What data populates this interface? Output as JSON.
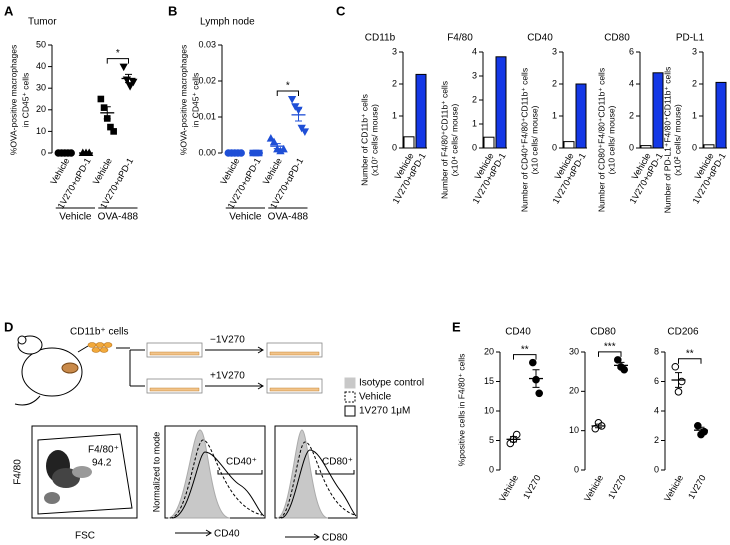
{
  "panel_labels": [
    "A",
    "B",
    "C",
    "D",
    "E"
  ],
  "chart_data": [
    {
      "type": "dot",
      "title": "Tumor",
      "y_label": [
        "%OVA-positive macrophages",
        "in CD45⁺ cells"
      ],
      "categories": [
        "Vehicle",
        "1V270+αPD-1",
        "Vehicle",
        "1V270+αPD-1"
      ],
      "group_labels": [
        {
          "text": "Vehicle",
          "categories": [
            0,
            1
          ]
        },
        {
          "text": "OVA-488",
          "categories": [
            2,
            3
          ]
        }
      ],
      "markers": [
        "circle",
        "triangle",
        "square",
        "triangle-down"
      ],
      "colors": [
        "#000000",
        "#000000",
        "#000000",
        "#000000"
      ],
      "points": [
        [
          0,
          0,
          0,
          0,
          0
        ],
        [
          0,
          0,
          0
        ],
        [
          25,
          21,
          16,
          12,
          10
        ],
        [
          40,
          34,
          31,
          33
        ]
      ],
      "means": [
        0,
        0,
        18.6,
        34.5
      ],
      "sems": [
        0,
        0,
        2.8,
        1.9
      ],
      "ylim": [
        0,
        50
      ],
      "yticks": [
        0,
        10,
        20,
        30,
        40,
        50
      ],
      "significance": [
        {
          "groups": [
            2,
            3
          ],
          "label": "*"
        }
      ]
    },
    {
      "type": "dot",
      "title": "Lymph node",
      "y_label": [
        "%OVA-positive macrophages",
        "in CD45⁺ cells"
      ],
      "categories": [
        "Vehicle",
        "1V270+αPD-1",
        "Vehicle",
        "1V270+αPD-1"
      ],
      "group_labels": [
        {
          "text": "Vehicle",
          "categories": [
            0,
            1
          ]
        },
        {
          "text": "OVA-488",
          "categories": [
            2,
            3
          ]
        }
      ],
      "markers": [
        "circle",
        "square",
        "triangle",
        "triangle-down"
      ],
      "colors": [
        "#1f4fd6",
        "#1f4fd6",
        "#1f4fd6",
        "#1f4fd6"
      ],
      "points": [
        [
          0,
          0,
          0,
          0,
          0
        ],
        [
          0,
          0,
          0
        ],
        [
          0.004,
          0.003,
          0.001,
          0.0005,
          0.001
        ],
        [
          0.015,
          0.013,
          0.012,
          0.007,
          0.006
        ]
      ],
      "means": [
        0,
        0,
        0.0019,
        0.0106
      ],
      "sems": [
        0,
        0,
        0.0007,
        0.0017
      ],
      "ylim": [
        0,
        0.03
      ],
      "yticks": [
        {
          "value": 0,
          "label": "0.00"
        },
        0.01,
        0.02,
        0.03
      ],
      "significance": [
        {
          "groups": [
            2,
            3
          ],
          "label": "*"
        }
      ]
    },
    {
      "type": "bar",
      "title": "CD11b",
      "y_label": [
        "Number of CD11b⁺ cells",
        "(x10⁷ cells/ mouse)"
      ],
      "categories": [
        "Vehicle",
        "1V270+αPD-1"
      ],
      "values": [
        0.35,
        2.3
      ],
      "colors": [
        "#ffffff",
        "#1438e6"
      ],
      "ylim": [
        0,
        3
      ],
      "yticks": [
        0,
        1,
        2,
        3
      ]
    },
    {
      "type": "bar",
      "title": "F4/80",
      "y_label": [
        "Number of F4/80⁺CD11b⁺ cells",
        "(x10⁴ cells/ mouse)"
      ],
      "categories": [
        "Vehicle",
        "1V270+αPD-1"
      ],
      "values": [
        0.45,
        3.8
      ],
      "colors": [
        "#ffffff",
        "#1438e6"
      ],
      "ylim": [
        0,
        4
      ],
      "yticks": [
        0,
        1,
        2,
        3,
        4
      ]
    },
    {
      "type": "bar",
      "title": "CD40",
      "y_label": [
        "Number of CD40⁺F4/80⁺CD11b⁺ cells",
        "(x10 cells/ mouse)"
      ],
      "categories": [
        "Vehicle",
        "1V270+αPD-1"
      ],
      "values": [
        0.2,
        2.0
      ],
      "colors": [
        "#ffffff",
        "#1438e6"
      ],
      "ylim": [
        0,
        3
      ],
      "yticks": [
        0,
        1,
        2,
        3
      ]
    },
    {
      "type": "bar",
      "title": "CD80",
      "y_label": [
        "Number of CD80⁺F4/80⁺CD11b⁺ cells",
        "(x10 cells/ mouse)"
      ],
      "categories": [
        "Vehicle",
        "1V270+αPD-1"
      ],
      "values": [
        0.15,
        4.7
      ],
      "colors": [
        "#ffffff",
        "#1438e6"
      ],
      "ylim": [
        0,
        6
      ],
      "yticks": [
        0,
        2,
        4,
        6
      ]
    },
    {
      "type": "bar",
      "title": "PD-L1",
      "y_label": [
        "Number of PD-L1⁺F4/80⁺CD11b⁺ cells",
        "(x10² cells/ mouse)"
      ],
      "categories": [
        "Vehicle",
        "1V270+αPD-1"
      ],
      "values": [
        0.1,
        2.05
      ],
      "colors": [
        "#ffffff",
        "#1438e6"
      ],
      "ylim": [
        0,
        3
      ],
      "yticks": [
        0,
        1,
        2,
        3
      ]
    },
    {
      "type": "dot",
      "title": "CD40",
      "y_label": [
        "%positive cells in F4/80⁺ cells"
      ],
      "categories": [
        "Vehicle",
        "1V270"
      ],
      "markers": [
        "circle",
        "circle"
      ],
      "colors": [
        "#ffffff",
        "#000000"
      ],
      "points": [
        [
          4.5,
          5.2,
          6.0
        ],
        [
          18.2,
          15.3,
          13.0
        ]
      ],
      "means": [
        5.2,
        15.5
      ],
      "sems": [
        0.45,
        1.5
      ],
      "ylim": [
        0,
        20
      ],
      "yticks": [
        0,
        5,
        10,
        15,
        20
      ],
      "significance": [
        {
          "groups": [
            0,
            1
          ],
          "label": "**"
        }
      ]
    },
    {
      "type": "dot",
      "title": "CD80",
      "categories": [
        "Vehicle",
        "1V270"
      ],
      "markers": [
        "circle",
        "circle"
      ],
      "colors": [
        "#ffffff",
        "#000000"
      ],
      "points": [
        [
          10.5,
          12.0,
          11.2
        ],
        [
          28.0,
          26.2,
          25.5
        ]
      ],
      "means": [
        11.2,
        26.6
      ],
      "sems": [
        0.45,
        0.75
      ],
      "ylim": [
        0,
        30
      ],
      "yticks": [
        0,
        10,
        20,
        30
      ],
      "significance": [
        {
          "groups": [
            0,
            1
          ],
          "label": "***"
        }
      ]
    },
    {
      "type": "dot",
      "title": "CD206",
      "categories": [
        "Vehicle",
        "1V270"
      ],
      "markers": [
        "circle",
        "circle"
      ],
      "colors": [
        "#ffffff",
        "#000000"
      ],
      "points": [
        [
          7.0,
          5.3,
          6.0
        ],
        [
          3.0,
          2.4,
          2.6
        ]
      ],
      "means": [
        6.1,
        2.7
      ],
      "sems": [
        0.5,
        0.2
      ],
      "ylim": [
        0,
        8
      ],
      "yticks": [
        0,
        2,
        4,
        6,
        8
      ],
      "significance": [
        {
          "groups": [
            0,
            1
          ],
          "label": "**"
        }
      ]
    }
  ],
  "diagram": {
    "cells_label": "CD11b⁺ cells",
    "conditions": [
      "−1V270",
      "+1V270"
    ],
    "legend": [
      "Isotype control",
      "Vehicle",
      "1V270 1μM"
    ],
    "flow": {
      "y_label": "F4/80",
      "x_label": "FSC",
      "gate": "F4/80⁺",
      "gate_value": 94.2
    },
    "histograms": {
      "y_label": "Normalized to mode",
      "panels": [
        {
          "gate": "CD40⁺",
          "x_label": "CD40"
        },
        {
          "gate": "CD80⁺",
          "x_label": "CD80"
        }
      ]
    }
  }
}
